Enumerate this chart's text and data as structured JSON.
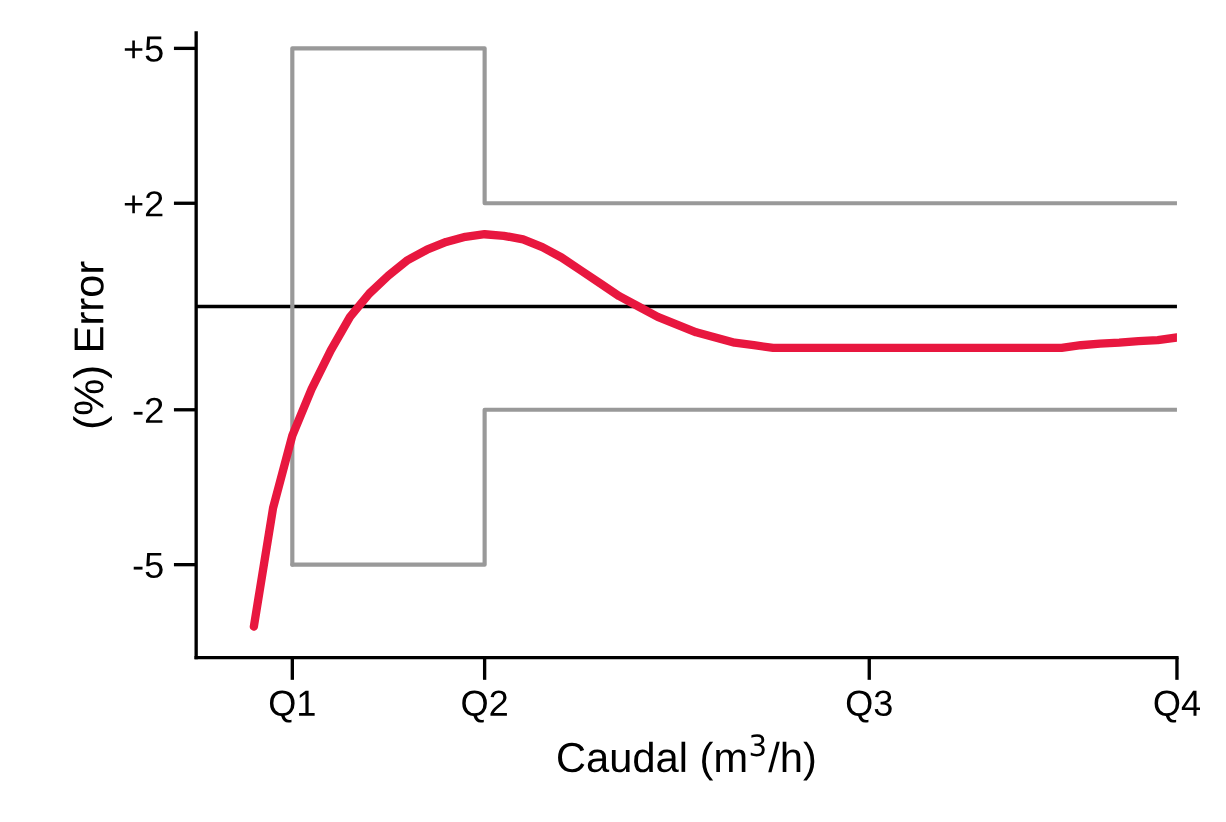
{
  "chart_data": {
    "type": "line",
    "xlabel": "Caudal (m$^{3}$/h)",
    "ylabel": "(%) Error",
    "ylim": [
      -6.8,
      5.3
    ],
    "yticks": [
      {
        "value": 5,
        "label": "+5"
      },
      {
        "value": 2,
        "label": "+2"
      },
      {
        "value": -2,
        "label": "-2"
      },
      {
        "value": -5,
        "label": "-5"
      }
    ],
    "categories": [
      null,
      null,
      null,
      null,
      null,
      "Q1",
      null,
      null,
      null,
      null,
      null,
      null,
      null,
      null,
      null,
      "Q2",
      null,
      null,
      null,
      null,
      null,
      null,
      null,
      null,
      null,
      null,
      null,
      null,
      null,
      null,
      null,
      null,
      null,
      null,
      null,
      "Q3",
      null,
      null,
      null,
      null,
      null,
      null,
      null,
      null,
      null,
      null,
      null,
      null,
      null,
      null,
      null,
      "Q4"
    ],
    "grid": false,
    "legend": false,
    "marker": "none",
    "line_style": "solid",
    "ref_lines": [
      {
        "axis": "y",
        "value": 0,
        "label": null,
        "color": "#000000"
      }
    ],
    "series": [
      {
        "type": "step",
        "color": "#999999",
        "values": [
          null,
          null,
          null,
          null,
          null,
          -5,
          5,
          5,
          5,
          5,
          5,
          5,
          5,
          5,
          5,
          5,
          2,
          2,
          2,
          2,
          2,
          2,
          2,
          2,
          2,
          2,
          2,
          2,
          2,
          2,
          2,
          2,
          2,
          2,
          2,
          2,
          2,
          2,
          2,
          2,
          2,
          2,
          2,
          2,
          2,
          2,
          2,
          2,
          2,
          2,
          2,
          2
        ]
      },
      {
        "type": "step",
        "color": "#999999",
        "values": [
          null,
          null,
          null,
          null,
          null,
          -5,
          -5,
          -5,
          -5,
          -5,
          -5,
          -5,
          -5,
          -5,
          -5,
          -5,
          -2,
          -2,
          -2,
          -2,
          -2,
          -2,
          -2,
          -2,
          -2,
          -2,
          -2,
          -2,
          -2,
          -2,
          -2,
          -2,
          -2,
          -2,
          -2,
          -2,
          -2,
          -2,
          -2,
          -2,
          -2,
          -2,
          -2,
          -2,
          -2,
          -2,
          -2,
          -2,
          -2,
          -2,
          -2,
          -2
        ]
      },
      {
        "color": "#e8173f",
        "values": [
          null,
          null,
          null,
          -6.2,
          -3.9,
          -2.5,
          -1.6,
          -0.85,
          -0.2,
          0.25,
          0.6,
          0.9,
          1.1,
          1.25,
          1.35,
          1.4,
          1.37,
          1.3,
          1.15,
          0.95,
          0.7,
          0.45,
          0.2,
          0.0,
          -0.2,
          -0.35,
          -0.5,
          -0.6,
          -0.7,
          -0.75,
          -0.8,
          -0.8,
          -0.8,
          -0.8,
          -0.8,
          -0.8,
          -0.8,
          -0.8,
          -0.8,
          -0.8,
          -0.8,
          -0.8,
          -0.8,
          -0.8,
          -0.8,
          -0.8,
          -0.75,
          -0.72,
          -0.7,
          -0.67,
          -0.65,
          -0.6
        ]
      }
    ]
  }
}
